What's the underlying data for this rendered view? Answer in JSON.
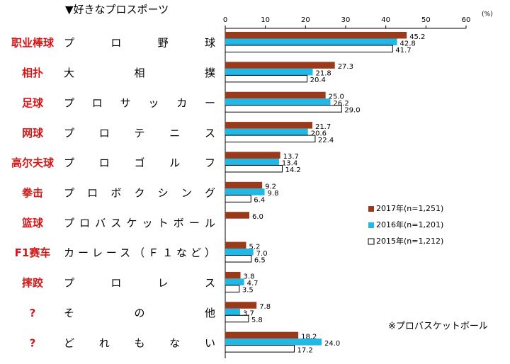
{
  "chart_data": {
    "type": "bar",
    "orientation": "horizontal",
    "title": "▼好きなプロスポーツ",
    "unit": "(%)",
    "footnote": "※プロバスケットボール",
    "categories": [
      "プロ野球",
      "大相撲",
      "プロサッカー",
      "プロテニス",
      "プロゴルフ",
      "プロボクシング",
      "プロバスケットボール",
      "カーレース（Ｆ１など）",
      "プロレス",
      "その他",
      "どれもない"
    ],
    "category_notes": [
      "职业棒球",
      "相扑",
      "足球",
      "网球",
      "高尔夫球",
      "拳击",
      "篮球",
      "F1赛车",
      "摔跤",
      "?",
      "?"
    ],
    "series": [
      {
        "name": "2017年(n=1,251)",
        "color": "#9b3a1a",
        "values": [
          45.2,
          27.3,
          25.0,
          21.7,
          13.7,
          9.2,
          6.0,
          5.2,
          3.8,
          7.8,
          18.2
        ],
        "value_labels": [
          "45.2",
          "27.3",
          "25.0",
          "21.7",
          "13.7",
          "9.2",
          "6.0",
          "5.2",
          "3.8",
          "7.8",
          "18.2"
        ]
      },
      {
        "name": "2016年(n=1,201)",
        "color": "#22b8e6",
        "values": [
          42.8,
          21.8,
          26.2,
          20.6,
          13.4,
          9.8,
          null,
          7.0,
          4.7,
          3.7,
          24.0
        ],
        "value_labels": [
          "42.8",
          "21.8",
          "26.2",
          "20.6",
          "13.4",
          "9.8",
          null,
          "7.0",
          "4.7",
          "3.7",
          "24.0"
        ]
      },
      {
        "name": "2015年(n=1,212)",
        "color": "#ffffff",
        "values": [
          41.7,
          20.4,
          29.0,
          22.4,
          14.2,
          6.4,
          null,
          6.5,
          3.5,
          5.8,
          17.2
        ],
        "value_labels": [
          "41.7",
          "20.4",
          "29.0",
          "22.4",
          "14.2",
          "6.4",
          null,
          "6.5",
          "3.5",
          "5.8",
          "17.2"
        ]
      }
    ],
    "xlim": [
      0,
      60
    ],
    "xticks": [
      0,
      10,
      20,
      30,
      40,
      50,
      60
    ]
  }
}
